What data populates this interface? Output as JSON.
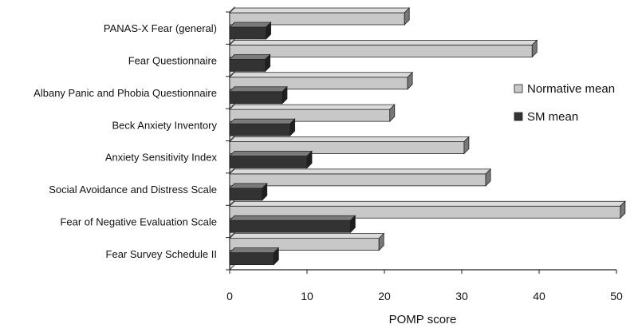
{
  "chart_data": {
    "type": "bar",
    "orientation": "horizontal",
    "style": "3d",
    "categories": [
      "PANAS-X Fear (general)",
      "Fear Questionnaire",
      "Albany Panic and Phobia Questionnaire",
      "Beck Anxiety Inventory",
      "Anxiety Sensitivity Index",
      "Social Avoidance and Distress Scale",
      "Fear of Negative Evaluation Scale",
      "Fear Survey Schedule II"
    ],
    "series": [
      {
        "name": "Normative mean",
        "color": "#c8c8c8",
        "values": [
          22.6,
          39.1,
          23.0,
          20.7,
          30.3,
          33.1,
          50.5,
          19.3
        ]
      },
      {
        "name": "SM mean",
        "color": "#333333",
        "values": [
          4.7,
          4.6,
          6.8,
          7.8,
          10.0,
          4.2,
          15.6,
          5.7
        ]
      }
    ],
    "title": "",
    "xlabel": "POMP score",
    "ylabel": "",
    "xlim": [
      0,
      50
    ],
    "xticks": [
      0,
      10,
      20,
      30,
      40,
      50
    ],
    "grid": false,
    "legend_position": "right"
  }
}
